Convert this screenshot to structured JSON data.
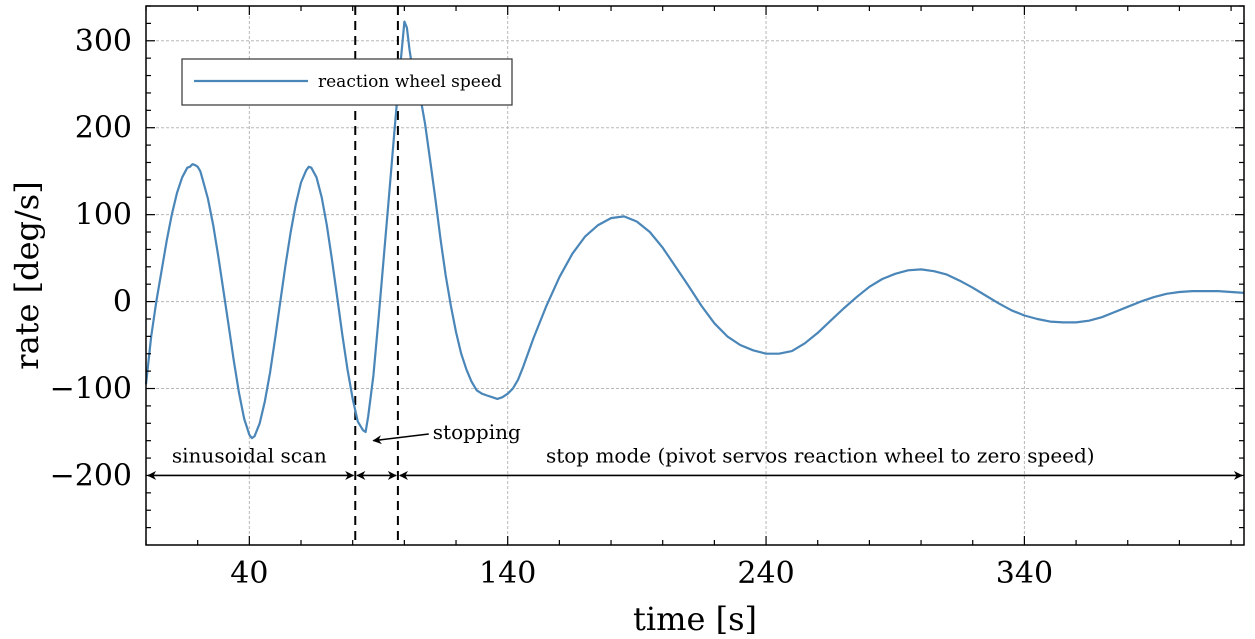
{
  "chart_data": {
    "type": "line",
    "title": "",
    "xlabel": "time [s]",
    "ylabel": "rate [deg/s]",
    "xlim": [
      0,
      425
    ],
    "ylim": [
      -280,
      340
    ],
    "x_ticks": [
      40,
      140,
      240,
      340
    ],
    "x_tick_labels": [
      "40",
      "140",
      "240",
      "340"
    ],
    "y_ticks": [
      300,
      200,
      100,
      0,
      -100,
      -200
    ],
    "y_tick_labels": [
      "300",
      "200",
      "100",
      "0",
      "−100",
      "−200"
    ],
    "grid": true,
    "legend": {
      "placement": "top-left",
      "entries": [
        "reaction wheel speed"
      ]
    },
    "series": [
      {
        "name": "reaction wheel speed",
        "color": "#4a86b8",
        "points": [
          [
            0,
            -95
          ],
          [
            2,
            -40
          ],
          [
            4,
            0
          ],
          [
            6,
            35
          ],
          [
            8,
            70
          ],
          [
            10,
            100
          ],
          [
            12,
            125
          ],
          [
            14,
            143
          ],
          [
            16,
            154
          ],
          [
            17,
            155
          ],
          [
            18,
            158
          ],
          [
            19,
            157
          ],
          [
            20,
            155
          ],
          [
            21,
            150
          ],
          [
            22,
            140
          ],
          [
            24,
            118
          ],
          [
            26,
            88
          ],
          [
            28,
            52
          ],
          [
            30,
            12
          ],
          [
            32,
            -28
          ],
          [
            34,
            -68
          ],
          [
            36,
            -105
          ],
          [
            38,
            -135
          ],
          [
            40,
            -153
          ],
          [
            41,
            -157
          ],
          [
            42,
            -155
          ],
          [
            44,
            -140
          ],
          [
            46,
            -115
          ],
          [
            48,
            -82
          ],
          [
            50,
            -42
          ],
          [
            52,
            0
          ],
          [
            54,
            42
          ],
          [
            56,
            80
          ],
          [
            58,
            112
          ],
          [
            60,
            137
          ],
          [
            62,
            151
          ],
          [
            63,
            155
          ],
          [
            64,
            154
          ],
          [
            66,
            143
          ],
          [
            68,
            120
          ],
          [
            70,
            88
          ],
          [
            72,
            48
          ],
          [
            74,
            5
          ],
          [
            76,
            -38
          ],
          [
            78,
            -78
          ],
          [
            80,
            -112
          ],
          [
            82,
            -138
          ],
          [
            84,
            -148
          ],
          [
            85,
            -150
          ],
          [
            86,
            -132
          ],
          [
            88,
            -85
          ],
          [
            90,
            -20
          ],
          [
            92,
            50
          ],
          [
            94,
            120
          ],
          [
            96,
            190
          ],
          [
            97,
            225
          ],
          [
            98,
            258
          ],
          [
            99,
            290
          ],
          [
            100,
            322
          ],
          [
            101,
            315
          ],
          [
            102,
            290
          ],
          [
            103,
            270
          ],
          [
            104,
            258
          ],
          [
            106,
            238
          ],
          [
            108,
            205
          ],
          [
            110,
            162
          ],
          [
            112,
            118
          ],
          [
            114,
            72
          ],
          [
            116,
            30
          ],
          [
            118,
            -5
          ],
          [
            120,
            -35
          ],
          [
            122,
            -60
          ],
          [
            124,
            -78
          ],
          [
            126,
            -92
          ],
          [
            128,
            -102
          ],
          [
            130,
            -106
          ],
          [
            132,
            -108
          ],
          [
            134,
            -110
          ],
          [
            136,
            -112
          ],
          [
            138,
            -110
          ],
          [
            140,
            -106
          ],
          [
            142,
            -100
          ],
          [
            144,
            -90
          ],
          [
            146,
            -75
          ],
          [
            150,
            -42
          ],
          [
            155,
            -5
          ],
          [
            160,
            28
          ],
          [
            165,
            55
          ],
          [
            170,
            75
          ],
          [
            175,
            88
          ],
          [
            180,
            96
          ],
          [
            185,
            98
          ],
          [
            190,
            92
          ],
          [
            195,
            80
          ],
          [
            200,
            62
          ],
          [
            205,
            40
          ],
          [
            210,
            18
          ],
          [
            215,
            -5
          ],
          [
            220,
            -25
          ],
          [
            225,
            -40
          ],
          [
            230,
            -50
          ],
          [
            235,
            -56
          ],
          [
            240,
            -60
          ],
          [
            245,
            -60
          ],
          [
            250,
            -57
          ],
          [
            255,
            -48
          ],
          [
            260,
            -36
          ],
          [
            265,
            -22
          ],
          [
            270,
            -8
          ],
          [
            275,
            5
          ],
          [
            280,
            17
          ],
          [
            285,
            26
          ],
          [
            290,
            32
          ],
          [
            295,
            36
          ],
          [
            300,
            37
          ],
          [
            305,
            35
          ],
          [
            310,
            31
          ],
          [
            315,
            24
          ],
          [
            320,
            16
          ],
          [
            325,
            7
          ],
          [
            330,
            -2
          ],
          [
            335,
            -10
          ],
          [
            340,
            -16
          ],
          [
            345,
            -20
          ],
          [
            350,
            -23
          ],
          [
            355,
            -24
          ],
          [
            360,
            -24
          ],
          [
            365,
            -22
          ],
          [
            370,
            -18
          ],
          [
            375,
            -12
          ],
          [
            380,
            -6
          ],
          [
            385,
            0
          ],
          [
            390,
            5
          ],
          [
            395,
            9
          ],
          [
            400,
            11
          ],
          [
            405,
            12
          ],
          [
            410,
            12
          ],
          [
            415,
            12
          ],
          [
            420,
            11
          ],
          [
            425,
            10
          ]
        ]
      }
    ],
    "vlines": [
      {
        "x": 81,
        "style": "dashed"
      },
      {
        "x": 97.5,
        "style": "dashed"
      }
    ],
    "annotations": [
      {
        "kind": "span-arrow",
        "x1": 0,
        "x2": 81,
        "y": -200,
        "label": "sinusoidal scan",
        "label_x": 40,
        "label_y": -185
      },
      {
        "kind": "span-arrow",
        "x1": 81,
        "x2": 97.5,
        "y": -200,
        "label": "",
        "label_x": 89,
        "label_y": -185
      },
      {
        "kind": "span-arrow",
        "x1": 97.5,
        "x2": 425,
        "y": -200,
        "label": "stop mode (pivot servos reaction wheel to zero speed)",
        "label_x": 261,
        "label_y": -185
      },
      {
        "kind": "pointer",
        "from_x": 111,
        "from_y": -150,
        "to_x": 88,
        "to_y": -160,
        "label": "stopping"
      }
    ]
  }
}
